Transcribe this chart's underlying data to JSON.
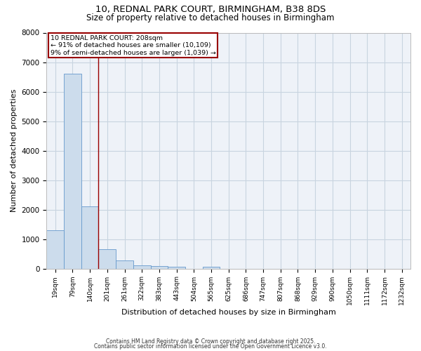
{
  "title1": "10, REDNAL PARK COURT, BIRMINGHAM, B38 8DS",
  "title2": "Size of property relative to detached houses in Birmingham",
  "xlabel": "Distribution of detached houses by size in Birmingham",
  "ylabel": "Number of detached properties",
  "categories": [
    "19sqm",
    "79sqm",
    "140sqm",
    "201sqm",
    "261sqm",
    "322sqm",
    "383sqm",
    "443sqm",
    "504sqm",
    "565sqm",
    "625sqm",
    "686sqm",
    "747sqm",
    "807sqm",
    "868sqm",
    "929sqm",
    "990sqm",
    "1050sqm",
    "1111sqm",
    "1172sqm",
    "1232sqm"
  ],
  "values": [
    1300,
    6600,
    2100,
    650,
    280,
    110,
    80,
    50,
    0,
    60,
    0,
    0,
    0,
    0,
    0,
    0,
    0,
    0,
    0,
    0,
    0
  ],
  "bar_color": "#ccdcec",
  "bar_edge_color": "#6699cc",
  "grid_color": "#c8d4e0",
  "background_color": "#eef2f8",
  "annotation_text": "10 REDNAL PARK COURT: 208sqm\n← 91% of detached houses are smaller (10,109)\n9% of semi-detached houses are larger (1,039) →",
  "vline_x": 2.5,
  "vline_color": "#990000",
  "annotation_box_edgecolor": "#990000",
  "ylim": [
    0,
    8000
  ],
  "yticks": [
    0,
    1000,
    2000,
    3000,
    4000,
    5000,
    6000,
    7000,
    8000
  ],
  "footer1": "Contains HM Land Registry data © Crown copyright and database right 2025.",
  "footer2": "Contains public sector information licensed under the Open Government Licence v3.0."
}
